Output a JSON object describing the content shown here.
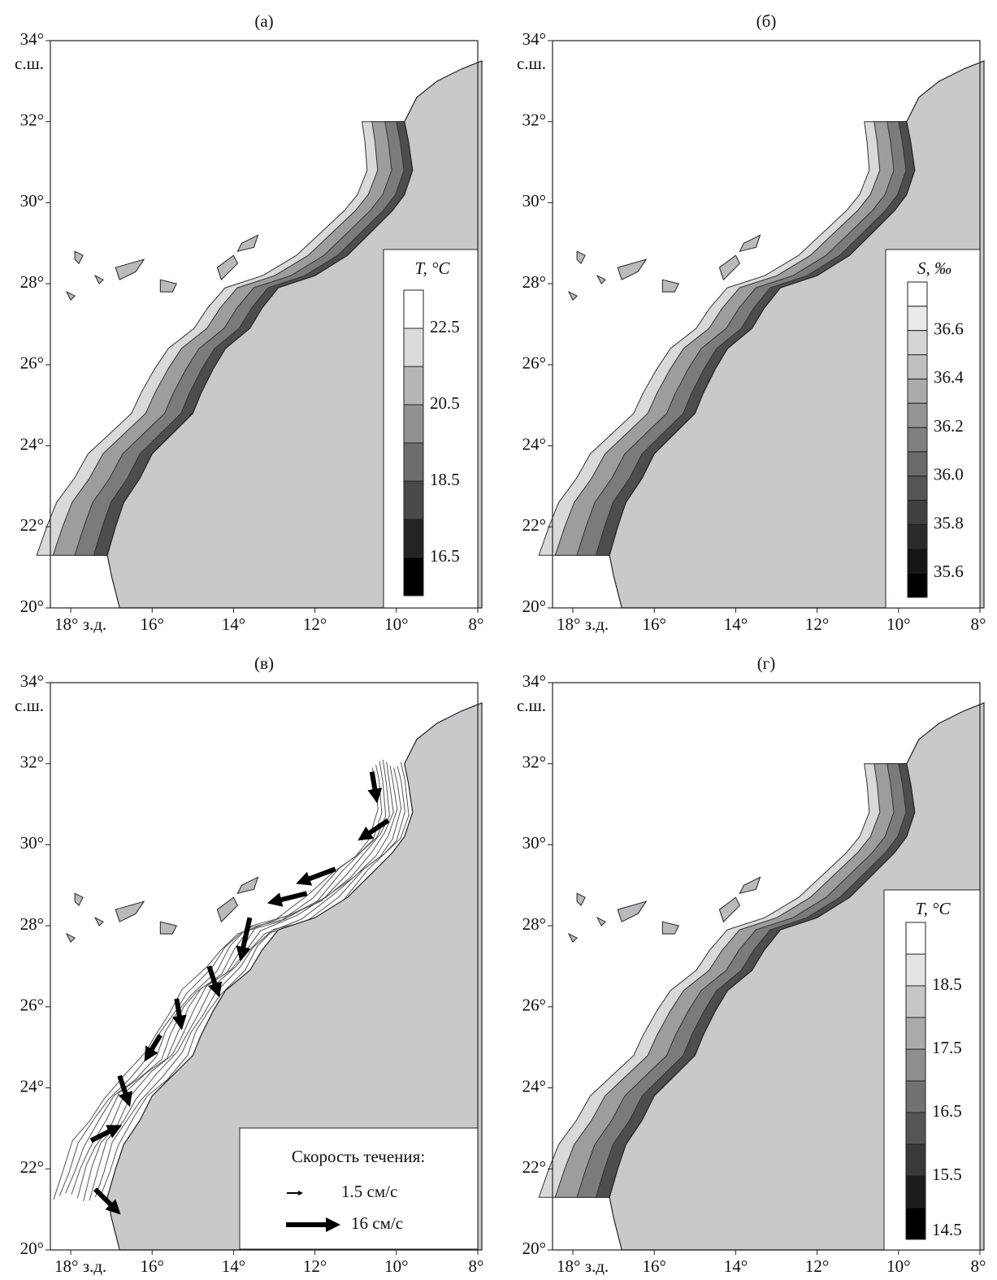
{
  "panels": [
    {
      "label": "(а)",
      "yticks": [
        "34°",
        "32°",
        "30°",
        "28°",
        "26°",
        "24°",
        "22°",
        "20°"
      ],
      "y_hemisphere": "с.ш.",
      "xticks": [
        "18° з.д.",
        "16°",
        "14°",
        "12°",
        "10°",
        "8°"
      ],
      "legend": {
        "title": "T, °C",
        "labels": [
          "22.5",
          "20.5",
          "18.5",
          "16.5"
        ]
      }
    },
    {
      "label": "(б)",
      "yticks": [
        "34°",
        "32°",
        "30°",
        "28°",
        "26°",
        "24°",
        "22°",
        "20°"
      ],
      "y_hemisphere": "с.ш.",
      "xticks": [
        "18° з.д.",
        "16°",
        "14°",
        "12°",
        "10°",
        "8°"
      ],
      "legend": {
        "title": "S, ‰",
        "labels": [
          "36.6",
          "36.4",
          "36.2",
          "36.0",
          "35.8",
          "35.6"
        ]
      }
    },
    {
      "label": "(в)",
      "yticks": [
        "34°",
        "32°",
        "30°",
        "28°",
        "26°",
        "24°",
        "22°",
        "20°"
      ],
      "y_hemisphere": "с.ш.",
      "xticks": [
        "18° з.д.",
        "16°",
        "14°",
        "12°",
        "10°",
        "8°"
      ],
      "legend": {
        "title": "Скорость течения:",
        "labels": [
          "1.5 см/с",
          "16 см/с"
        ]
      }
    },
    {
      "label": "(г)",
      "yticks": [
        "34°",
        "32°",
        "30°",
        "28°",
        "26°",
        "24°",
        "22°",
        "20°"
      ],
      "y_hemisphere": "с.ш.",
      "xticks": [
        "18° з.д.",
        "16°",
        "14°",
        "12°",
        "10°",
        "8°"
      ],
      "legend": {
        "title": "T, °C",
        "labels": [
          "18.5",
          "17.5",
          "16.5",
          "15.5",
          "14.5"
        ]
      }
    }
  ]
}
